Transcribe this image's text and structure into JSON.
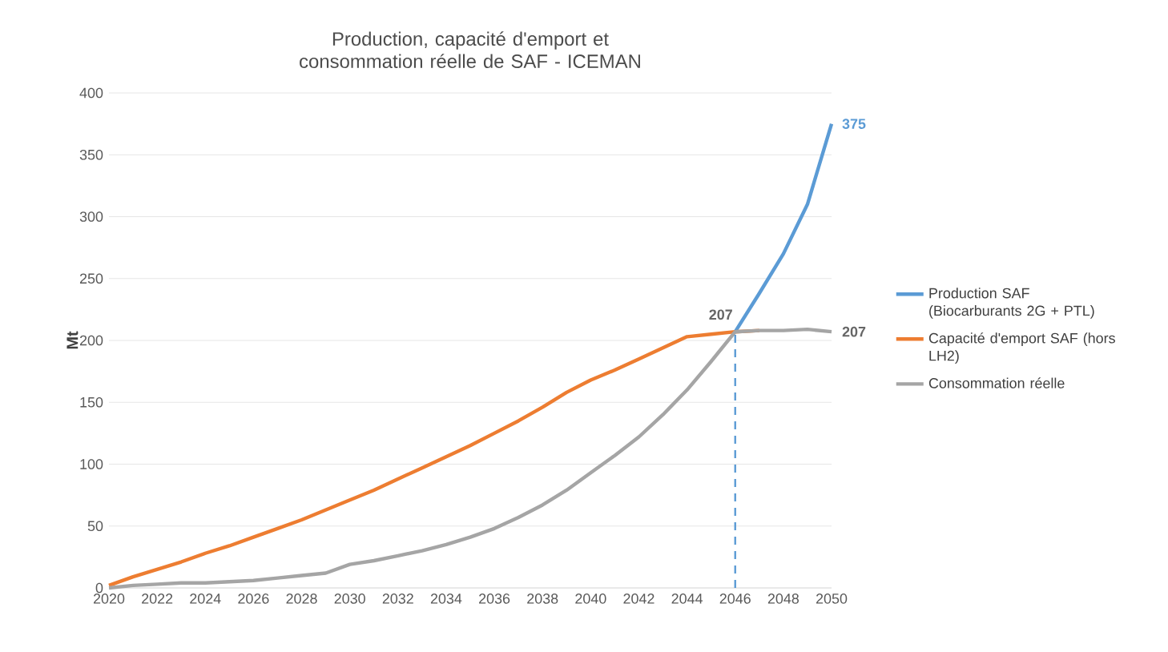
{
  "chart_data": {
    "type": "line",
    "title": "Production, capacité d'emport et consommation réelle de SAF - ICEMAN",
    "ylabel": "Mt",
    "x": [
      2020,
      2021,
      2022,
      2023,
      2024,
      2025,
      2026,
      2027,
      2028,
      2029,
      2030,
      2031,
      2032,
      2033,
      2034,
      2035,
      2036,
      2037,
      2038,
      2039,
      2040,
      2041,
      2042,
      2043,
      2044,
      2045,
      2046,
      2047,
      2048,
      2049,
      2050
    ],
    "series": [
      {
        "name": "Production SAF (Biocarburants 2G + PTL)",
        "color": "#5b9bd5",
        "values": [
          null,
          null,
          null,
          null,
          null,
          null,
          null,
          null,
          null,
          null,
          null,
          null,
          null,
          null,
          null,
          null,
          null,
          null,
          null,
          null,
          null,
          null,
          null,
          null,
          null,
          null,
          207,
          238,
          270,
          310,
          375
        ],
        "value_labels": [
          null,
          null,
          null,
          null,
          null,
          null,
          null,
          null,
          null,
          null,
          null,
          null,
          null,
          null,
          null,
          null,
          null,
          null,
          null,
          null,
          null,
          null,
          null,
          null,
          null,
          null,
          null,
          null,
          null,
          null,
          "375"
        ]
      },
      {
        "name": "Capacité d'emport SAF (hors LH2)",
        "color": "#ed7d31",
        "values": [
          2,
          9,
          15,
          21,
          28,
          34,
          41,
          48,
          55,
          63,
          71,
          79,
          88,
          97,
          106,
          115,
          125,
          135,
          146,
          158,
          168,
          176,
          185,
          194,
          203,
          205,
          207,
          208,
          null,
          null,
          null
        ]
      },
      {
        "name": "Consommation réelle",
        "color": "#a5a5a5",
        "values": [
          0,
          2,
          3,
          4,
          4,
          5,
          6,
          8,
          10,
          12,
          19,
          22,
          26,
          30,
          35,
          41,
          48,
          57,
          67,
          79,
          93,
          107,
          122,
          140,
          160,
          183,
          207,
          208,
          208,
          209,
          207
        ],
        "value_labels": [
          null,
          null,
          null,
          null,
          null,
          null,
          null,
          null,
          null,
          null,
          null,
          null,
          null,
          null,
          null,
          null,
          null,
          null,
          null,
          null,
          null,
          null,
          null,
          null,
          null,
          null,
          "207",
          null,
          null,
          null,
          "207"
        ]
      },
      {
        "color": "#5b9bd5",
        "x": [
          2046,
          2046
        ],
        "values": [
          0,
          207
        ],
        "line_style": "dashed"
      }
    ],
    "xlim": [
      2020,
      2050
    ],
    "xticks": [
      2020,
      2022,
      2024,
      2026,
      2028,
      2030,
      2032,
      2034,
      2036,
      2038,
      2040,
      2042,
      2044,
      2046,
      2048,
      2050
    ],
    "ylim": [
      0,
      400
    ],
    "yticks": [
      0,
      50,
      100,
      150,
      200,
      250,
      300,
      350,
      400
    ],
    "grid": "y",
    "legend": "right",
    "marker": "none",
    "line_style": "solid"
  }
}
